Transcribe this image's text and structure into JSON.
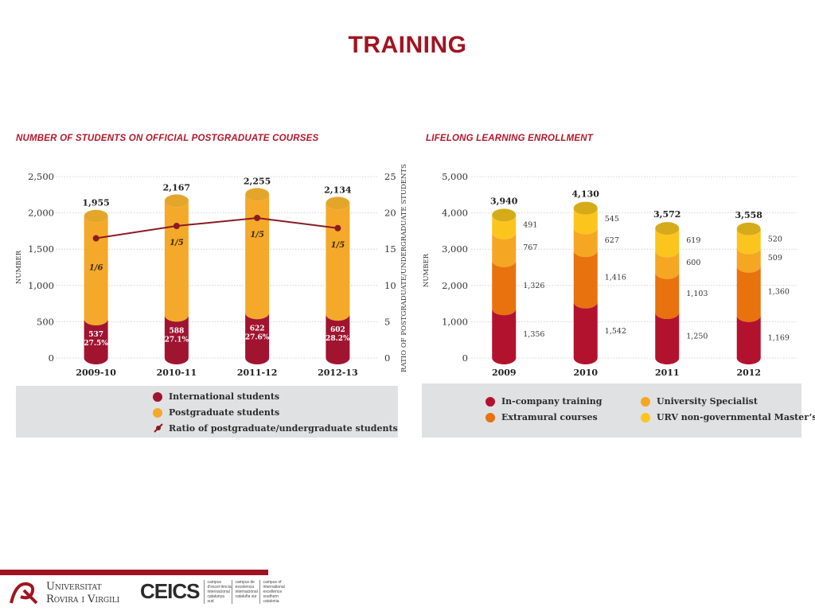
{
  "page": {
    "title": "TRAINING"
  },
  "colors": {
    "title": "#a01421",
    "international": "#a01430",
    "postgraduate": "#f4a92a",
    "postgraduate_top": "#e4a62a",
    "ratio": "#8b1a24",
    "inco": "#b3122f",
    "extramural": "#e8720e",
    "specialist": "#f5a623",
    "urv": "#fcc51e",
    "legend_bg": "#e0e1e2"
  },
  "chart_data": [
    {
      "type": "bar",
      "title": "NUMBER OF STUDENTS ON OFFICIAL POSTGRADUATE COURSES",
      "ylabel": "NUMBER",
      "y2label": "RATIO OF POSTGRADUATE/UNDERGRADUATE STUDENTS",
      "ylim": [
        0,
        2500
      ],
      "y2lim": [
        0,
        25
      ],
      "yticks": [
        "0",
        "500",
        "1,000",
        "1,500",
        "2,000",
        "2,500"
      ],
      "y2ticks": [
        "0",
        "5",
        "10",
        "15",
        "20",
        "25"
      ],
      "categories": [
        "2009-10",
        "2010-11",
        "2011-12",
        "2012-13"
      ],
      "totals": [
        "1,955",
        "2,167",
        "2,255",
        "2,134"
      ],
      "total_values": [
        1955,
        2167,
        2255,
        2134
      ],
      "series": [
        {
          "name": "International students",
          "values": [
            537,
            588,
            622,
            602
          ],
          "labels": [
            "537",
            "588",
            "622",
            "602"
          ],
          "pct": [
            "27.5%",
            "27.1%",
            "27.6%",
            "28.2%"
          ]
        },
        {
          "name": "Postgraduate students",
          "values": [
            1418,
            1579,
            1633,
            1532
          ]
        },
        {
          "name": "Ratio of postgraduate/undergraduate students",
          "type": "line",
          "values": [
            16.5,
            18.2,
            19.3,
            17.9
          ],
          "labels": [
            "1/6",
            "1/5",
            "1/5",
            "1/5"
          ]
        }
      ],
      "legend": [
        "International students",
        "Postgraduate students",
        "Ratio of postgraduate/undergraduate students"
      ]
    },
    {
      "type": "bar",
      "title": "LIFELONG LEARNING ENROLLMENT",
      "ylabel": "NUMBER",
      "ylim": [
        0,
        5000
      ],
      "yticks": [
        "0",
        "1,000",
        "2,000",
        "3,000",
        "4,000",
        "5,000"
      ],
      "categories": [
        "2009",
        "2010",
        "2011",
        "2012"
      ],
      "totals": [
        "3,940",
        "4,130",
        "3,572",
        "3,558"
      ],
      "total_values": [
        3940,
        4130,
        3572,
        3558
      ],
      "series": [
        {
          "name": "In-company training",
          "values": [
            1356,
            1542,
            1250,
            1169
          ],
          "labels": [
            "1,356",
            "1,542",
            "1,250",
            "1,169"
          ]
        },
        {
          "name": "Extramural courses",
          "values": [
            1326,
            1416,
            1103,
            1360
          ],
          "labels": [
            "1,326",
            "1,416",
            "1,103",
            "1,360"
          ]
        },
        {
          "name": "University Specialist",
          "values": [
            767,
            627,
            600,
            509
          ],
          "labels": [
            "767",
            "627",
            "600",
            "509"
          ]
        },
        {
          "name": "URV non-governmental Master's",
          "values": [
            491,
            545,
            619,
            520
          ],
          "labels": [
            "491",
            "545",
            "619",
            "520"
          ]
        }
      ],
      "legend": [
        "In-company training",
        "University Specialist",
        "Extramural courses",
        "URV non-governmental Master’s"
      ]
    }
  ],
  "footer": {
    "urv_line1": "Universitat",
    "urv_line2": "Rovira i Virgili",
    "ceics_logo": "CEICS",
    "ceics_col1": "campus d'excel·lència internacional catalunya sud",
    "ceics_col2": "campus de excelencia internacional cataluña sur",
    "ceics_col3": "campus of international excellence southern catalonia"
  }
}
